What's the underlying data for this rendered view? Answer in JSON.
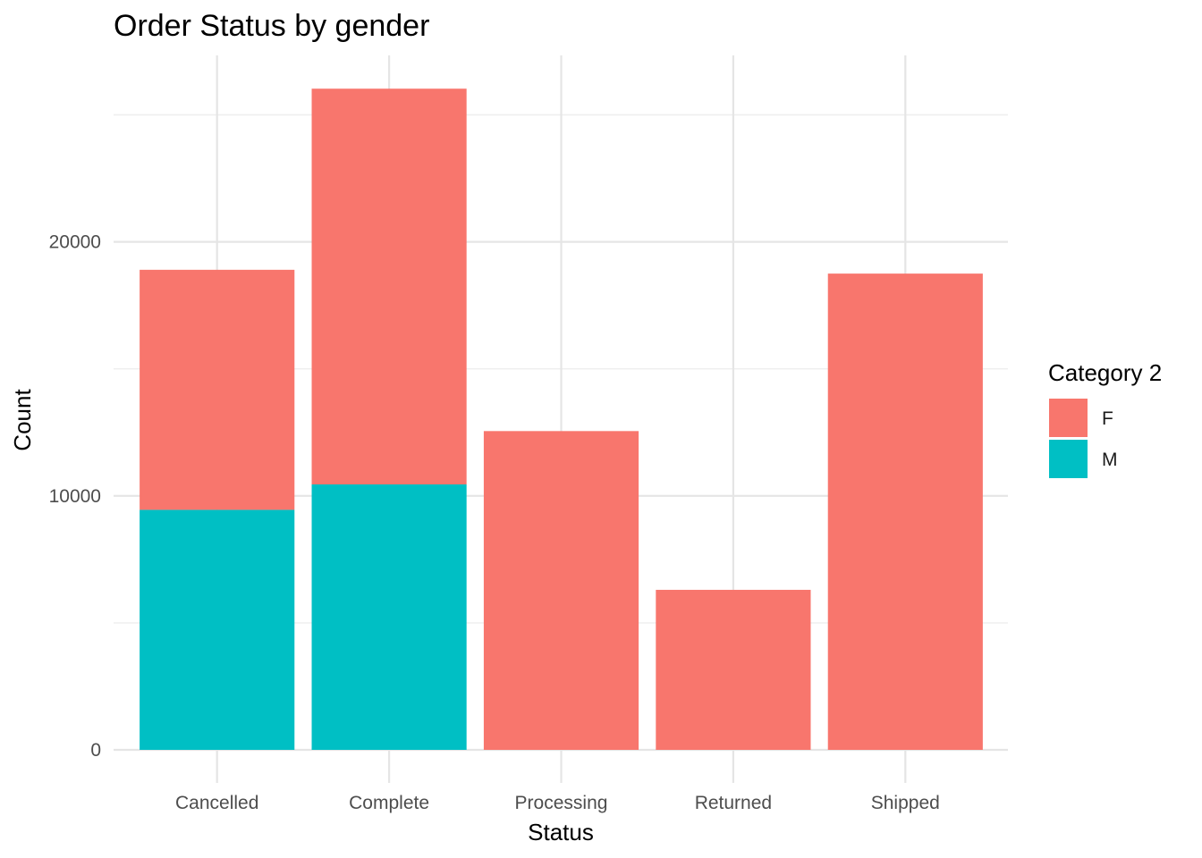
{
  "chart_data": {
    "type": "bar",
    "stacked": true,
    "title": "Order Status by gender",
    "xlabel": "Status",
    "ylabel": "Count",
    "categories": [
      "Cancelled",
      "Complete",
      "Processing",
      "Returned",
      "Shipped"
    ],
    "series": [
      {
        "name": "F",
        "color": "#F8766D",
        "values": [
          9450,
          15580,
          12550,
          6300,
          18750
        ]
      },
      {
        "name": "M",
        "color": "#00BFC4",
        "values": [
          9450,
          10450,
          0,
          0,
          0
        ]
      }
    ],
    "stack_order_bottom_to_top": [
      "M",
      "F"
    ],
    "ylim": [
      0,
      26000
    ],
    "yticks": [
      0,
      10000,
      20000
    ],
    "ytick_labels": [
      "0",
      "10000",
      "20000"
    ],
    "grid": true,
    "legend": {
      "title": "Category 2",
      "position": "right",
      "items": [
        "F",
        "M"
      ]
    }
  }
}
